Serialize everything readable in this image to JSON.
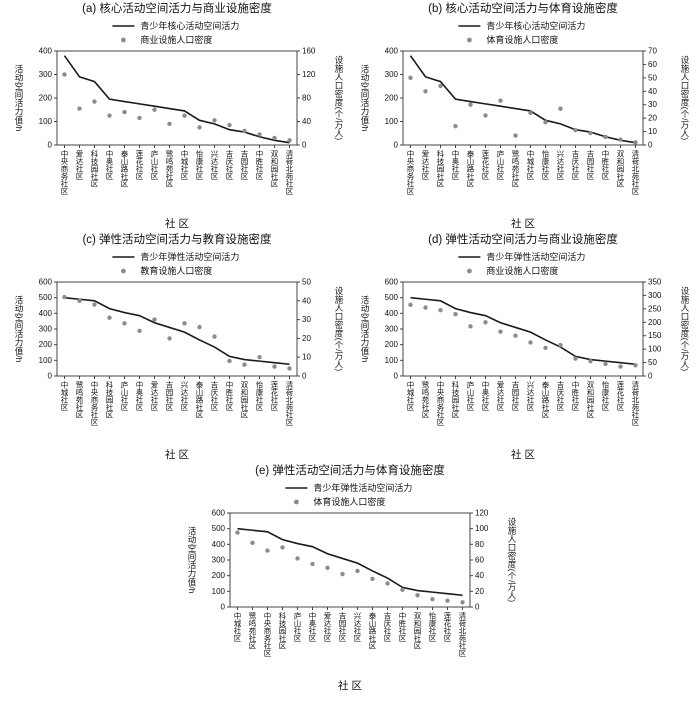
{
  "style": {
    "line_color": "#1a1a1a",
    "dot_color": "#8c8c8c",
    "axis_color": "#444444",
    "text_color": "#111111"
  },
  "chart_data": [
    {
      "id": "a",
      "type": "line",
      "title": "(a) 核心活动空间活力与商业设施密度",
      "xlabel": "社 区",
      "ylabel_left": "活动空间活力值/h",
      "ylabel_right": "设施人口密度(个/万人)",
      "left_axis": {
        "min": 0,
        "max": 400,
        "step": 100
      },
      "right_axis": {
        "min": 0,
        "max": 160,
        "step": 40
      },
      "legend_position": "top-center",
      "grid": false,
      "categories": [
        "中央商务社区",
        "爱达社区",
        "科技园社区",
        "中奥社区",
        "泰山路社区",
        "莲花社区",
        "庐山社区",
        "鹭鸣苑社区",
        "中城社区",
        "怡康社区",
        "兴达社区",
        "吉庆社区",
        "吉园社区",
        "中胜社区",
        "双和园社区",
        "清荷北苑社区"
      ],
      "series": [
        {
          "name": "青少年核心活动空间活力",
          "type": "line",
          "axis": "left",
          "values": [
            380,
            290,
            270,
            195,
            185,
            175,
            165,
            155,
            145,
            105,
            90,
            65,
            55,
            35,
            20,
            10
          ]
        },
        {
          "name": "商业设施人口密度",
          "type": "scatter",
          "axis": "right",
          "values": [
            120,
            62,
            74,
            50,
            56,
            46,
            60,
            36,
            50,
            30,
            42,
            34,
            24,
            18,
            12,
            8
          ]
        }
      ]
    },
    {
      "id": "b",
      "type": "line",
      "title": "(b) 核心活动空间活力与体育设施密度",
      "xlabel": "社 区",
      "ylabel_left": "活动空间活力值/h",
      "ylabel_right": "设施人口密度(个/万人)",
      "left_axis": {
        "min": 0,
        "max": 400,
        "step": 100
      },
      "right_axis": {
        "min": 0,
        "max": 70,
        "step": 10
      },
      "legend_position": "top-center",
      "grid": false,
      "categories": [
        "中央商务社区",
        "爱达社区",
        "科技园社区",
        "中奥社区",
        "泰山路社区",
        "莲花社区",
        "庐山社区",
        "鹭鸣苑社区",
        "中城社区",
        "怡康社区",
        "兴达社区",
        "吉庆社区",
        "吉园社区",
        "中胜社区",
        "双和园社区",
        "清荷北苑社区"
      ],
      "series": [
        {
          "name": "青少年核心活动空间活力",
          "type": "line",
          "axis": "left",
          "values": [
            380,
            290,
            270,
            195,
            185,
            175,
            165,
            155,
            145,
            105,
            90,
            65,
            55,
            35,
            20,
            10
          ]
        },
        {
          "name": "体育设施人口密度",
          "type": "scatter",
          "axis": "right",
          "values": [
            50,
            40,
            44,
            14,
            30,
            22,
            33,
            7,
            24,
            17,
            27,
            11,
            9,
            6,
            4,
            2
          ]
        }
      ]
    },
    {
      "id": "c",
      "type": "line",
      "title": "(c) 弹性活动空间活力与教育设施密度",
      "xlabel": "社 区",
      "ylabel_left": "活动空间活力值/h",
      "ylabel_right": "设施人口密度(个/万人)",
      "left_axis": {
        "min": 0,
        "max": 600,
        "step": 100
      },
      "right_axis": {
        "min": 0,
        "max": 50,
        "step": 10
      },
      "legend_position": "top-center",
      "grid": false,
      "categories": [
        "中城社区",
        "鹭鸣苑社区",
        "中央商务社区",
        "科技园社区",
        "庐山社区",
        "中奥社区",
        "爱达社区",
        "吉园社区",
        "兴达社区",
        "泰山路社区",
        "吉庆社区",
        "中胜社区",
        "双和园社区",
        "怡康社区",
        "莲花社区",
        "清荷北苑社区"
      ],
      "series": [
        {
          "name": "青少年弹性活动空间活力",
          "type": "line",
          "axis": "left",
          "values": [
            500,
            490,
            480,
            430,
            405,
            385,
            340,
            310,
            280,
            230,
            185,
            125,
            105,
            95,
            85,
            75
          ]
        },
        {
          "name": "教育设施人口密度",
          "type": "scatter",
          "axis": "right",
          "values": [
            42,
            40,
            38,
            31,
            28,
            24,
            30,
            20,
            28,
            26,
            21,
            8,
            6,
            10,
            5,
            4
          ]
        }
      ]
    },
    {
      "id": "d",
      "type": "line",
      "title": "(d) 弹性活动空间活力与商业设施密度",
      "xlabel": "社 区",
      "ylabel_left": "活动空间活力值/h",
      "ylabel_right": "设施人口密度(个/万人)",
      "left_axis": {
        "min": 0,
        "max": 600,
        "step": 100
      },
      "right_axis": {
        "min": 0,
        "max": 350,
        "step": 50
      },
      "legend_position": "top-center",
      "grid": false,
      "categories": [
        "中城社区",
        "鹭鸣苑社区",
        "中央商务社区",
        "科技园社区",
        "庐山社区",
        "中奥社区",
        "爱达社区",
        "吉园社区",
        "兴达社区",
        "泰山路社区",
        "吉庆社区",
        "中胜社区",
        "双和园社区",
        "怡康社区",
        "莲花社区",
        "清荷北苑社区"
      ],
      "series": [
        {
          "name": "青少年弹性活动空间活力",
          "type": "line",
          "axis": "left",
          "values": [
            500,
            490,
            480,
            430,
            405,
            385,
            340,
            310,
            280,
            230,
            185,
            125,
            105,
            95,
            85,
            75
          ]
        },
        {
          "name": "商业设施人口密度",
          "type": "scatter",
          "axis": "right",
          "values": [
            265,
            255,
            245,
            230,
            185,
            200,
            165,
            150,
            125,
            105,
            115,
            65,
            55,
            45,
            35,
            40
          ]
        }
      ]
    },
    {
      "id": "e",
      "type": "line",
      "title": "(e) 弹性活动空间活力与体育设施密度",
      "xlabel": "社 区",
      "ylabel_left": "活动空间活力值/h",
      "ylabel_right": "设施人口密度(个/万人)",
      "left_axis": {
        "min": 0,
        "max": 600,
        "step": 100
      },
      "right_axis": {
        "min": 0,
        "max": 120,
        "step": 20
      },
      "legend_position": "top-center",
      "grid": false,
      "categories": [
        "中城社区",
        "鹭鸣苑社区",
        "中央商务社区",
        "科技园社区",
        "庐山社区",
        "中奥社区",
        "爱达社区",
        "吉园社区",
        "兴达社区",
        "泰山路社区",
        "吉庆社区",
        "中胜社区",
        "双和园社区",
        "怡康社区",
        "莲花社区",
        "清荷北苑社区"
      ],
      "series": [
        {
          "name": "青少年弹性活动空间活力",
          "type": "line",
          "axis": "left",
          "values": [
            500,
            490,
            480,
            430,
            405,
            385,
            340,
            310,
            280,
            230,
            185,
            125,
            105,
            95,
            85,
            75
          ]
        },
        {
          "name": "体育设施人口密度",
          "type": "scatter",
          "axis": "right",
          "values": [
            95,
            82,
            72,
            76,
            62,
            55,
            50,
            42,
            46,
            36,
            30,
            22,
            15,
            10,
            8,
            6
          ]
        }
      ]
    }
  ]
}
